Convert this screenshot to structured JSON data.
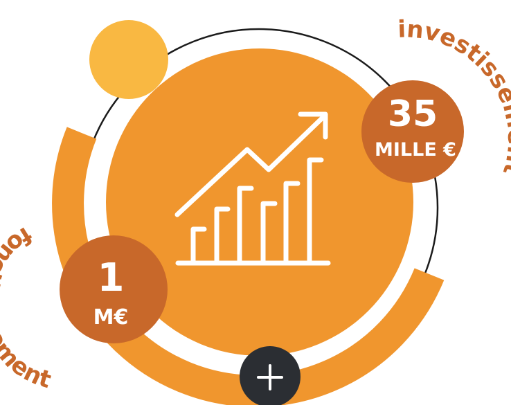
{
  "investissement": {
    "label": "investissement",
    "value": "35",
    "unit": "MILLE €"
  },
  "fonctionnement": {
    "label": "fonctionnement",
    "value": "1",
    "unit": "M€"
  },
  "more_button": {
    "symbol": "+"
  },
  "icons": {
    "center": "growth-chart-icon",
    "plus": "plus-icon"
  },
  "colors": {
    "orange_main": "#f0962e",
    "orange_dark": "#c8682a",
    "yellow_dot": "#f9b842",
    "dark_button": "#2b2e33",
    "ring_line": "#1b1b1b"
  }
}
